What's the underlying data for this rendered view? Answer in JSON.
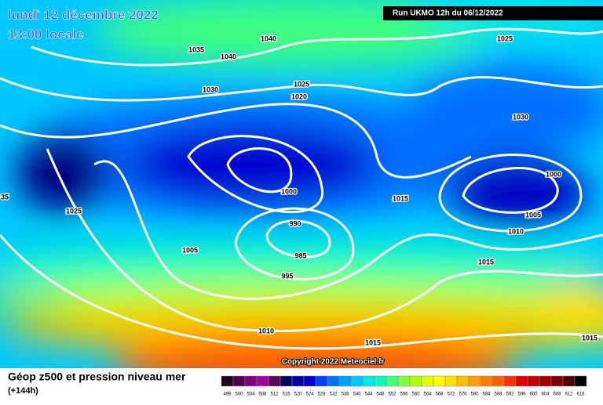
{
  "header": {
    "date": "lundi 12 décembre 2022",
    "time": "13:00 locale",
    "run": "Run UKMO 12h du 06/12/2022"
  },
  "isobar_labels": [
    "1040",
    "1035",
    "1040",
    "1025",
    "1030",
    "1025",
    "1020",
    "1030",
    "1000",
    "1000",
    "1015",
    "1005",
    "1010",
    "990",
    "985",
    "995",
    "1005",
    "1025",
    "35",
    "1015",
    "1010",
    "1015",
    "1015"
  ],
  "copyright": "Copyright 2022 Meteociel.fr",
  "footer": {
    "title": "Géop z500 et pression niveau mer",
    "lead": "(+144h)"
  },
  "scale": {
    "labels": [
      496,
      500,
      504,
      508,
      512,
      516,
      520,
      524,
      528,
      532,
      536,
      540,
      544,
      548,
      552,
      556,
      560,
      564,
      568,
      572,
      576,
      580,
      584,
      588,
      592,
      596,
      600,
      604,
      608,
      612,
      616
    ],
    "colors": [
      "#200020",
      "#4b0050",
      "#800080",
      "#a000a0",
      "#600060",
      "#000060",
      "#0000a0",
      "#0000d0",
      "#0040ff",
      "#0070ff",
      "#00a0ff",
      "#00c8ff",
      "#00e8e8",
      "#00ffc0",
      "#40ff80",
      "#80ff40",
      "#b0ff00",
      "#e0ff00",
      "#ffff00",
      "#ffe000",
      "#ffc000",
      "#ffa000",
      "#ff8000",
      "#ff6000",
      "#ff3000",
      "#e00000",
      "#c00000",
      "#a00000",
      "#800000",
      "#500000",
      "#000000"
    ]
  }
}
